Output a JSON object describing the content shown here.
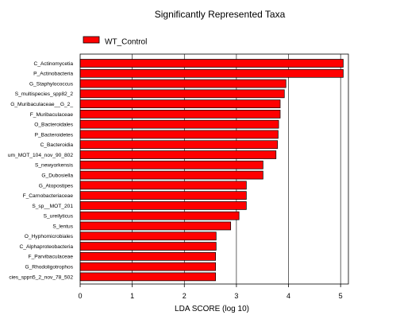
{
  "chart_data": {
    "type": "bar",
    "orientation": "horizontal",
    "title": "Significantly Represented Taxa",
    "xlabel": "LDA SCORE (log 10)",
    "ylabel": "",
    "xlim": [
      0,
      5.15
    ],
    "xticks": [
      0,
      1,
      2,
      3,
      4,
      5
    ],
    "grid": true,
    "legend_position": "top-left",
    "colors": {
      "bar": "#ff0000",
      "edge": "#000000"
    },
    "categories": [
      "C_Actinomycetia",
      "P_Actinobacteria",
      "G_Staphylococcus",
      "S_multispecies_spp82_2",
      "G_Muribaculaceae__G_2_",
      "F_Muribaculaceae",
      "O_Bacteroidales",
      "P_Bacteroidetes",
      "C_Bacteroidia",
      "um_MOT_104_nov_90_802",
      "S_newyorkensis",
      "G_Dubosiella",
      "G_Atopostipes",
      "F_Carnobacteriaceae",
      "S_sp__MOT_201",
      "S_ureilyticus",
      "S_lentus",
      "O_Hyphomicrobiales",
      "C_Alphaproteobacteria",
      "F_Parvibaculaceae",
      "G_Rhodoligotrophos",
      "cies_sppn5_2_nov_78_502"
    ],
    "series": [
      {
        "name": "WT_Control",
        "values": [
          5.05,
          5.05,
          3.95,
          3.92,
          3.84,
          3.84,
          3.81,
          3.8,
          3.79,
          3.76,
          3.51,
          3.51,
          3.19,
          3.19,
          3.19,
          3.05,
          2.89,
          2.61,
          2.61,
          2.6,
          2.6,
          2.6
        ]
      }
    ]
  }
}
